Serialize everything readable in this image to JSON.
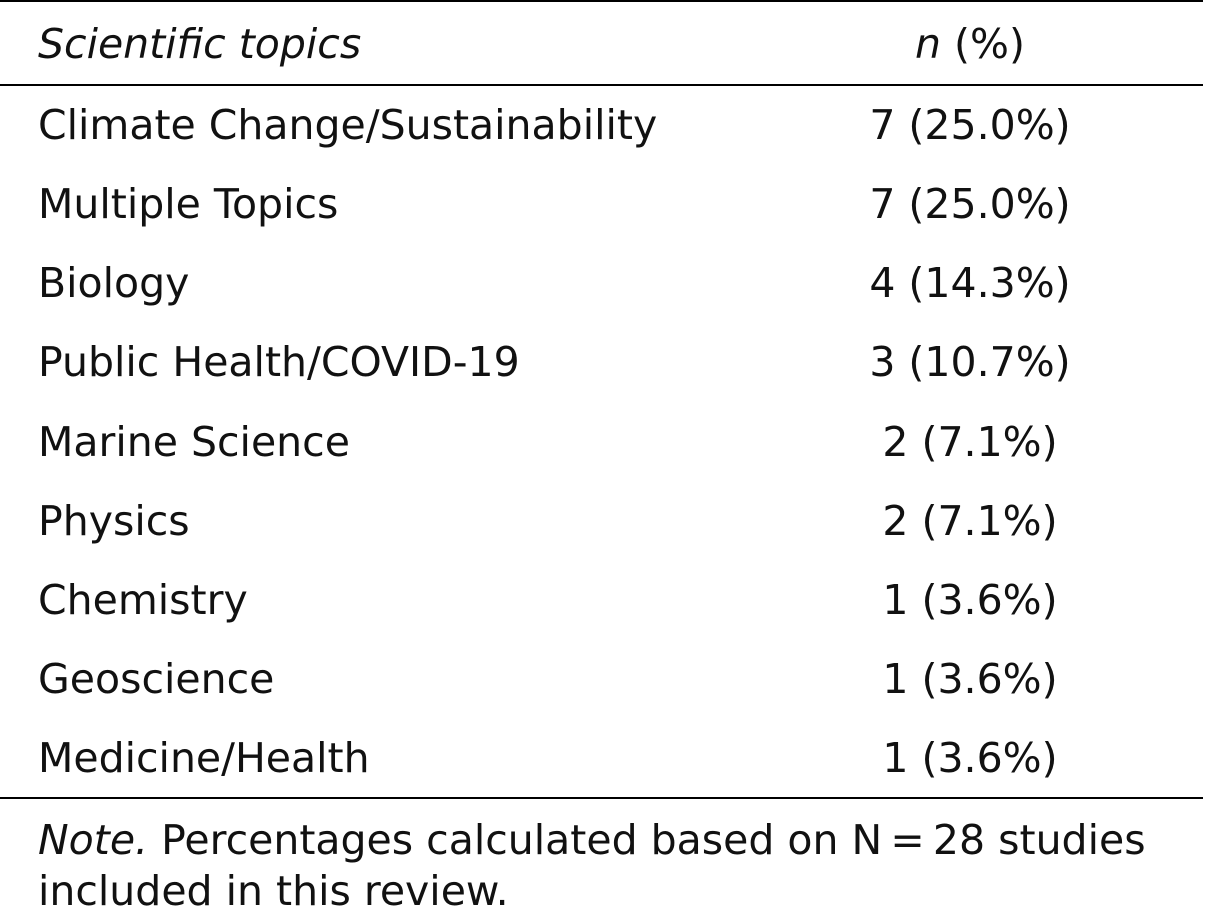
{
  "table": {
    "header": {
      "topic_label": "Scientific topics",
      "n_label": "n",
      "pct_label": "(%)"
    },
    "rows": [
      {
        "topic": "Climate Change/Sustainability",
        "count": "7 (25.0%)"
      },
      {
        "topic": "Multiple Topics",
        "count": "7 (25.0%)"
      },
      {
        "topic": "Biology",
        "count": "4 (14.3%)"
      },
      {
        "topic": "Public Health/COVID-19",
        "count": "3 (10.7%)"
      },
      {
        "topic": "Marine Science",
        "count": "2 (7.1%)"
      },
      {
        "topic": "Physics",
        "count": "2 (7.1%)"
      },
      {
        "topic": "Chemistry",
        "count": "1 (3.6%)"
      },
      {
        "topic": "Geoscience",
        "count": "1 (3.6%)"
      },
      {
        "topic": "Medicine/Health",
        "count": "1 (3.6%)"
      }
    ],
    "note": {
      "label": "Note.",
      "text": "Percentages calculated based on N = 28 studies included in this review."
    }
  }
}
